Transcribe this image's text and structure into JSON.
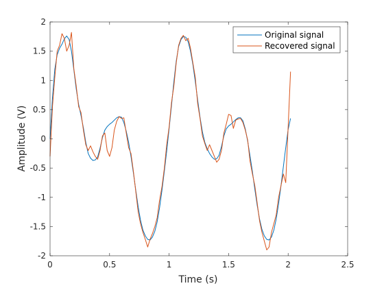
{
  "chart_data": {
    "type": "line",
    "xlabel": "Time (s)",
    "ylabel": "Amplitude (V)",
    "xlim": [
      0,
      2.5
    ],
    "ylim": [
      -2,
      2
    ],
    "xticks": [
      0,
      0.5,
      1,
      1.5,
      2,
      2.5
    ],
    "xtick_labels": [
      "0",
      "0.5",
      "1",
      "1.5",
      "2",
      "2.5"
    ],
    "yticks": [
      -2,
      -1.5,
      -1,
      -0.5,
      0,
      0.5,
      1,
      1.5,
      2
    ],
    "ytick_labels": [
      "-2",
      "-1.5",
      "-1",
      "-0.5",
      "0",
      "0.5",
      "1",
      "1.5",
      "2"
    ],
    "grid": false,
    "legend_position": "top-right",
    "series": [
      {
        "name": "Original signal",
        "color": "#0072BD",
        "x": [
          0,
          0.02,
          0.04,
          0.06,
          0.08,
          0.1,
          0.12,
          0.14,
          0.16,
          0.18,
          0.2,
          0.22,
          0.24,
          0.26,
          0.28,
          0.3,
          0.32,
          0.34,
          0.36,
          0.38,
          0.4,
          0.42,
          0.44,
          0.46,
          0.48,
          0.5,
          0.52,
          0.54,
          0.56,
          0.58,
          0.6,
          0.62,
          0.64,
          0.66,
          0.68,
          0.7,
          0.72,
          0.74,
          0.76,
          0.78,
          0.8,
          0.82,
          0.84,
          0.86,
          0.88,
          0.9,
          0.92,
          0.94,
          0.96,
          0.98,
          1,
          1.02,
          1.04,
          1.06,
          1.08,
          1.1,
          1.12,
          1.14,
          1.16,
          1.18,
          1.2,
          1.22,
          1.24,
          1.26,
          1.28,
          1.3,
          1.32,
          1.34,
          1.36,
          1.38,
          1.4,
          1.42,
          1.44,
          1.46,
          1.48,
          1.5,
          1.52,
          1.54,
          1.56,
          1.58,
          1.6,
          1.62,
          1.64,
          1.66,
          1.68,
          1.7,
          1.72,
          1.74,
          1.76,
          1.78,
          1.8,
          1.82,
          1.84,
          1.86,
          1.88,
          1.9,
          1.92,
          1.94,
          1.96,
          1.98,
          2,
          2.02
        ],
        "y": [
          0,
          0.7,
          1.19,
          1.44,
          1.55,
          1.62,
          1.71,
          1.76,
          1.7,
          1.5,
          1.18,
          0.85,
          0.59,
          0.4,
          0.19,
          -0.06,
          -0.25,
          -0.33,
          -0.37,
          -0.36,
          -0.31,
          -0.16,
          0.02,
          0.15,
          0.21,
          0.25,
          0.28,
          0.32,
          0.36,
          0.38,
          0.37,
          0.28,
          0.13,
          -0.06,
          -0.3,
          -0.58,
          -0.88,
          -1.16,
          -1.39,
          -1.56,
          -1.66,
          -1.72,
          -1.73,
          -1.68,
          -1.58,
          -1.42,
          -1.18,
          -0.88,
          -0.55,
          -0.21,
          0.17,
          0.57,
          0.97,
          1.33,
          1.58,
          1.7,
          1.75,
          1.74,
          1.66,
          1.5,
          1.27,
          0.98,
          0.66,
          0.37,
          0.12,
          -0.06,
          -0.17,
          -0.25,
          -0.31,
          -0.35,
          -0.34,
          -0.28,
          -0.13,
          0.05,
          0.17,
          0.22,
          0.25,
          0.29,
          0.33,
          0.36,
          0.36,
          0.31,
          0.17,
          -0.04,
          -0.29,
          -0.56,
          -0.86,
          -1.14,
          -1.37,
          -1.55,
          -1.66,
          -1.72,
          -1.73,
          -1.68,
          -1.56,
          -1.37,
          -1.11,
          -0.8,
          -0.47,
          -0.15,
          0.16,
          0.35
        ]
      },
      {
        "name": "Recovered signal",
        "color": "#D95319",
        "x": [
          0,
          0.02,
          0.04,
          0.06,
          0.08,
          0.1,
          0.12,
          0.14,
          0.16,
          0.18,
          0.2,
          0.22,
          0.24,
          0.26,
          0.28,
          0.3,
          0.32,
          0.34,
          0.36,
          0.38,
          0.4,
          0.42,
          0.44,
          0.46,
          0.48,
          0.5,
          0.52,
          0.54,
          0.56,
          0.58,
          0.6,
          0.62,
          0.64,
          0.66,
          0.68,
          0.7,
          0.72,
          0.74,
          0.76,
          0.78,
          0.8,
          0.82,
          0.84,
          0.86,
          0.88,
          0.9,
          0.92,
          0.94,
          0.96,
          0.98,
          1,
          1.02,
          1.04,
          1.06,
          1.08,
          1.1,
          1.12,
          1.14,
          1.16,
          1.18,
          1.2,
          1.22,
          1.24,
          1.26,
          1.28,
          1.3,
          1.32,
          1.34,
          1.36,
          1.38,
          1.4,
          1.42,
          1.44,
          1.46,
          1.48,
          1.5,
          1.52,
          1.54,
          1.56,
          1.58,
          1.6,
          1.62,
          1.64,
          1.66,
          1.68,
          1.7,
          1.72,
          1.74,
          1.76,
          1.78,
          1.8,
          1.82,
          1.84,
          1.86,
          1.88,
          1.9,
          1.92,
          1.94,
          1.96,
          1.98,
          2,
          2.02
        ],
        "y": [
          -0.3,
          0.55,
          1.05,
          1.5,
          1.6,
          1.8,
          1.72,
          1.5,
          1.6,
          1.82,
          1.2,
          0.9,
          0.55,
          0.45,
          0.15,
          -0.1,
          -0.2,
          -0.12,
          -0.22,
          -0.3,
          -0.35,
          -0.2,
          0.05,
          0.1,
          -0.2,
          -0.3,
          -0.15,
          0.15,
          0.3,
          0.38,
          0.35,
          0.36,
          0.1,
          -0.15,
          -0.25,
          -0.55,
          -0.9,
          -1.25,
          -1.45,
          -1.6,
          -1.72,
          -1.85,
          -1.72,
          -1.62,
          -1.5,
          -1.35,
          -1.05,
          -0.82,
          -0.5,
          -0.1,
          0.2,
          0.62,
          0.9,
          1.3,
          1.6,
          1.72,
          1.77,
          1.68,
          1.72,
          1.55,
          1.3,
          1.05,
          0.6,
          0.35,
          0.05,
          -0.08,
          -0.2,
          -0.1,
          -0.2,
          -0.3,
          -0.4,
          -0.35,
          -0.2,
          0.1,
          0.25,
          0.42,
          0.4,
          0.18,
          0.32,
          0.34,
          0.35,
          0.28,
          0.15,
          -0.02,
          -0.38,
          -0.6,
          -0.8,
          -1.1,
          -1.4,
          -1.6,
          -1.75,
          -1.9,
          -1.85,
          -1.6,
          -1.45,
          -1.3,
          -1.0,
          -0.8,
          -0.6,
          -0.75,
          0.2,
          1.15
        ]
      }
    ]
  }
}
